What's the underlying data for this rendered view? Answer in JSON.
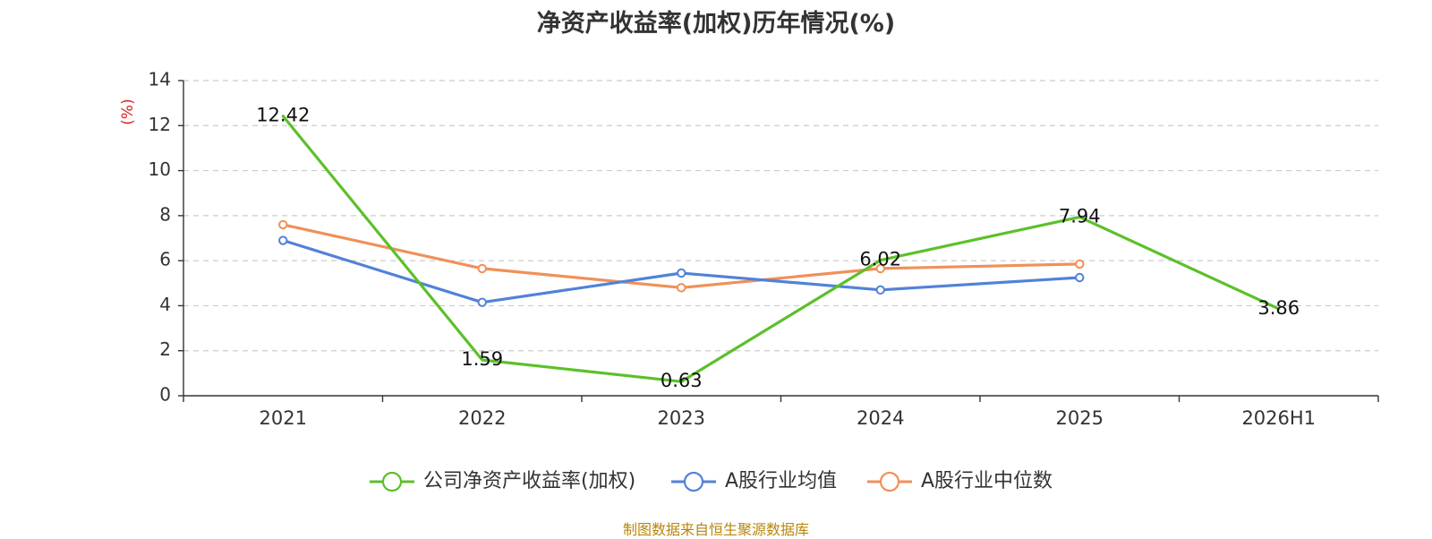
{
  "chart_data": {
    "type": "line",
    "title": "净资产收益率(加权)历年情况(%)",
    "ylabel": "(%)",
    "xlabel": "",
    "categories": [
      "2021",
      "2022",
      "2023",
      "2024",
      "2025",
      "2026H1"
    ],
    "ylim": [
      0,
      14
    ],
    "yticks": [
      0,
      2,
      4,
      6,
      8,
      10,
      12,
      14
    ],
    "grid": true,
    "legend_position": "bottom",
    "series": [
      {
        "name": "公司净资产收益率(加权)",
        "color": "#5cc02a",
        "values": [
          12.42,
          1.59,
          0.63,
          6.02,
          7.94,
          3.86
        ],
        "labels": [
          "12.42",
          "1.59",
          "0.63",
          "6.02",
          "7.94",
          "3.86"
        ],
        "markers": false
      },
      {
        "name": "A股行业均值",
        "color": "#5182d8",
        "values": [
          6.9,
          4.15,
          5.45,
          4.7,
          5.25,
          null
        ],
        "markers": true
      },
      {
        "name": "A股行业中位数",
        "color": "#f0905a",
        "values": [
          7.6,
          5.65,
          4.8,
          5.65,
          5.85,
          null
        ],
        "markers": true
      }
    ]
  },
  "source_note": "制图数据来自恒生聚源数据库"
}
